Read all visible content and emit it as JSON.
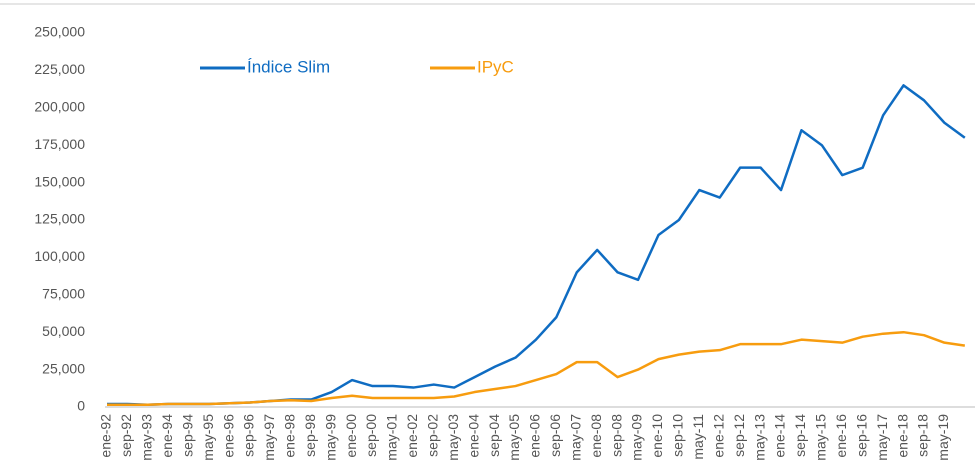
{
  "chart_data": {
    "type": "line",
    "categories": [
      "ene-92",
      "sep-92",
      "may-93",
      "ene-94",
      "sep-94",
      "may-95",
      "ene-96",
      "sep-96",
      "may-97",
      "ene-98",
      "sep-98",
      "may-99",
      "ene-00",
      "sep-00",
      "may-01",
      "ene-02",
      "sep-02",
      "may-03",
      "ene-04",
      "sep-04",
      "may-05",
      "ene-06",
      "sep-06",
      "may-07",
      "ene-08",
      "sep-08",
      "may-09",
      "ene-10",
      "sep-10",
      "may-11",
      "ene-12",
      "sep-12",
      "may-13",
      "ene-14",
      "sep-14",
      "may-15",
      "ene-16",
      "sep-16",
      "may-17",
      "ene-18",
      "sep-18",
      "may-19",
      null
    ],
    "series": [
      {
        "name": "Índice Slim",
        "color": "#0f6cc2",
        "values": [
          2000,
          2000,
          1500,
          2000,
          2000,
          2000,
          2500,
          3000,
          4000,
          5000,
          5000,
          10000,
          18000,
          14000,
          14000,
          13000,
          15000,
          13000,
          20000,
          27000,
          33000,
          45000,
          60000,
          90000,
          105000,
          90000,
          85000,
          115000,
          125000,
          145000,
          140000,
          160000,
          160000,
          145000,
          185000,
          175000,
          155000,
          160000,
          195000,
          215000,
          205000,
          190000,
          180000
        ]
      },
      {
        "name": "IPyC",
        "color": "#f79c0f",
        "values": [
          1500,
          1500,
          1500,
          2000,
          2000,
          2000,
          2500,
          3000,
          4000,
          4500,
          4000,
          6000,
          7500,
          6000,
          6000,
          6000,
          6000,
          7000,
          10000,
          12000,
          14000,
          18000,
          22000,
          30000,
          30000,
          20000,
          25000,
          32000,
          35000,
          37000,
          38000,
          42000,
          42000,
          42000,
          45000,
          44000,
          43000,
          47000,
          49000,
          50000,
          48000,
          43000,
          41000
        ]
      }
    ],
    "ylim": [
      0,
      250000
    ],
    "yticks": [
      0,
      {
        "value": 25000,
        "label": "25,000"
      },
      {
        "value": 50000,
        "label": "50,000"
      },
      {
        "value": 75000,
        "label": "75,000"
      },
      {
        "value": 100000,
        "label": "100,000"
      },
      {
        "value": 125000,
        "label": "125,000"
      },
      {
        "value": 150000,
        "label": "150,000"
      },
      {
        "value": 175000,
        "label": "175,000"
      },
      {
        "value": 200000,
        "label": "200,000"
      },
      {
        "value": 225000,
        "label": "225,000"
      },
      {
        "value": 250000,
        "label": "250,000"
      }
    ],
    "grid": false,
    "legend": "top-left"
  }
}
